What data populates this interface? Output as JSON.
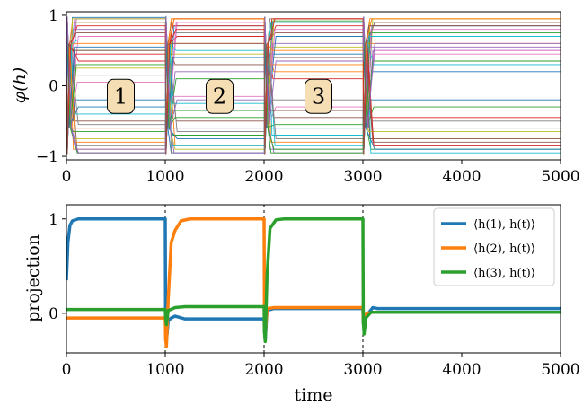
{
  "chart_data": [
    {
      "type": "line",
      "ylabel": "φ(h)",
      "xlim": [
        0,
        5000
      ],
      "ylim": [
        -1.05,
        1.05
      ],
      "xticks": [
        "0",
        "1000",
        "2000",
        "3000",
        "4000",
        "5000"
      ],
      "yticks": [
        "−1",
        "0",
        "1"
      ],
      "xtick_values": [
        0,
        1000,
        2000,
        3000,
        4000,
        5000
      ],
      "ytick_values": [
        -1,
        0,
        1
      ],
      "grid": false,
      "switch_times": [
        0,
        1000,
        2000,
        3000
      ],
      "annotations": [
        {
          "text": "1",
          "x": 550,
          "y": -0.15
        },
        {
          "text": "2",
          "x": 1550,
          "y": -0.15
        },
        {
          "text": "3",
          "x": 2550,
          "y": -0.15
        }
      ],
      "annotation_box_color": "#f5deb3",
      "series_description": "many unit traces; each switches level near t = 0, 1000, 2000, 3000 and is flat in between",
      "series_colors": [
        "#1f77b4",
        "#ff7f0e",
        "#2ca02c",
        "#d62728",
        "#9467bd",
        "#8c564b",
        "#e377c2",
        "#7f7f7f",
        "#bcbd22",
        "#17becf"
      ],
      "unit_levels": [
        [
          0.97,
          -0.95,
          0.45,
          0.85
        ],
        [
          -0.9,
          0.6,
          -0.8,
          0.95
        ],
        [
          0.5,
          -0.7,
          0.92,
          -0.9
        ],
        [
          -0.6,
          0.95,
          0.1,
          0.7
        ],
        [
          0.95,
          0.2,
          -0.95,
          0.5
        ],
        [
          -0.95,
          -0.5,
          0.75,
          -0.85
        ],
        [
          0.7,
          0.9,
          -0.3,
          0.45
        ],
        [
          0.15,
          -0.95,
          0.95,
          -0.6
        ],
        [
          -0.75,
          0.45,
          0.55,
          0.9
        ],
        [
          0.9,
          -0.25,
          -0.7,
          -0.95
        ],
        [
          -0.2,
          0.85,
          0.9,
          0.2
        ],
        [
          0.6,
          -0.85,
          0.2,
          0.65
        ],
        [
          -0.95,
          0.1,
          -0.55,
          -0.3
        ],
        [
          0.35,
          0.7,
          0.85,
          0.9
        ],
        [
          0.8,
          -0.6,
          -0.9,
          0.55
        ],
        [
          -0.5,
          0.95,
          0.4,
          -0.75
        ],
        [
          0.95,
          -0.15,
          0.65,
          0.8
        ],
        [
          -0.85,
          0.75,
          -0.2,
          -0.5
        ],
        [
          0.25,
          -0.9,
          0.95,
          0.95
        ],
        [
          0.65,
          0.5,
          -0.85,
          0.3
        ],
        [
          -0.3,
          -0.75,
          0.7,
          -0.9
        ],
        [
          0.9,
          0.95,
          0.3,
          0.6
        ],
        [
          -0.65,
          -0.35,
          -0.95,
          0.75
        ],
        [
          0.45,
          0.85,
          0.95,
          -0.45
        ],
        [
          -0.9,
          -0.95,
          0.6,
          0.85
        ],
        [
          0.75,
          0.3,
          -0.45,
          -0.8
        ],
        [
          0.05,
          0.9,
          0.8,
          0.5
        ],
        [
          -0.55,
          -0.65,
          -0.75,
          0.9
        ],
        [
          0.95,
          0.65,
          0.15,
          -0.65
        ],
        [
          -0.4,
          -0.85,
          0.9,
          0.7
        ],
        [
          0.55,
          0.4,
          -0.6,
          -0.2
        ],
        [
          -0.8,
          0.95,
          0.5,
          0.95
        ],
        [
          0.3,
          -0.45,
          -0.9,
          0.35
        ],
        [
          0.85,
          0.8,
          0.95,
          -0.85
        ],
        [
          -0.95,
          -0.2,
          0.35,
          0.6
        ],
        [
          0.5,
          0.6,
          -0.35,
          0.85
        ]
      ]
    },
    {
      "type": "line",
      "xlabel": "time",
      "ylabel": "projection",
      "xlim": [
        0,
        5000
      ],
      "ylim": [
        -0.42,
        1.15
      ],
      "xticks": [
        "0",
        "1000",
        "2000",
        "3000",
        "4000",
        "5000"
      ],
      "yticks": [
        "0",
        "1"
      ],
      "xtick_values": [
        0,
        1000,
        2000,
        3000,
        4000,
        5000
      ],
      "ytick_values": [
        0,
        1
      ],
      "grid": false,
      "legend_position": "top-right",
      "vlines": [
        1000,
        2000,
        3000
      ],
      "series": [
        {
          "name": "⟨h(1), h(t)⟩",
          "color": "#1f77b4",
          "points": [
            [
              0,
              0.35
            ],
            [
              15,
              0.75
            ],
            [
              35,
              0.93
            ],
            [
              60,
              0.98
            ],
            [
              120,
              1.0
            ],
            [
              1000,
              1.0
            ],
            [
              1004,
              -0.2
            ],
            [
              1012,
              -0.3
            ],
            [
              1030,
              -0.08
            ],
            [
              1060,
              -0.05
            ],
            [
              1100,
              -0.03
            ],
            [
              1200,
              -0.06
            ],
            [
              2000,
              -0.06
            ],
            [
              2004,
              -0.2
            ],
            [
              2012,
              -0.28
            ],
            [
              2030,
              0.03
            ],
            [
              2100,
              0.05
            ],
            [
              3000,
              0.05
            ],
            [
              3004,
              -0.1
            ],
            [
              3012,
              -0.16
            ],
            [
              3030,
              -0.03
            ],
            [
              3070,
              0.02
            ],
            [
              3100,
              0.06
            ],
            [
              3150,
              0.05
            ],
            [
              5000,
              0.05
            ]
          ]
        },
        {
          "name": "⟨h(2), h(t)⟩",
          "color": "#ff7f0e",
          "points": [
            [
              0,
              -0.05
            ],
            [
              1000,
              -0.05
            ],
            [
              1004,
              -0.28
            ],
            [
              1012,
              -0.35
            ],
            [
              1030,
              0.15
            ],
            [
              1060,
              0.75
            ],
            [
              1100,
              0.88
            ],
            [
              1160,
              0.98
            ],
            [
              1250,
              1.0
            ],
            [
              2000,
              1.0
            ],
            [
              2004,
              -0.15
            ],
            [
              2012,
              -0.22
            ],
            [
              2030,
              0.05
            ],
            [
              2100,
              0.06
            ],
            [
              3000,
              0.06
            ],
            [
              3004,
              -0.08
            ],
            [
              3012,
              -0.12
            ],
            [
              3030,
              0.0
            ],
            [
              3100,
              0.01
            ],
            [
              5000,
              0.01
            ]
          ]
        },
        {
          "name": "⟨h(3), h(t)⟩",
          "color": "#2ca02c",
          "points": [
            [
              0,
              0.04
            ],
            [
              1000,
              0.04
            ],
            [
              1004,
              -0.05
            ],
            [
              1012,
              -0.12
            ],
            [
              1030,
              0.03
            ],
            [
              1100,
              0.06
            ],
            [
              1200,
              0.07
            ],
            [
              2000,
              0.07
            ],
            [
              2004,
              -0.2
            ],
            [
              2012,
              -0.3
            ],
            [
              2030,
              0.4
            ],
            [
              2060,
              0.9
            ],
            [
              2120,
              0.99
            ],
            [
              2200,
              1.0
            ],
            [
              3000,
              1.0
            ],
            [
              3004,
              -0.1
            ],
            [
              3012,
              -0.22
            ],
            [
              3030,
              -0.05
            ],
            [
              3080,
              0.01
            ],
            [
              5000,
              0.01
            ]
          ]
        }
      ]
    }
  ]
}
